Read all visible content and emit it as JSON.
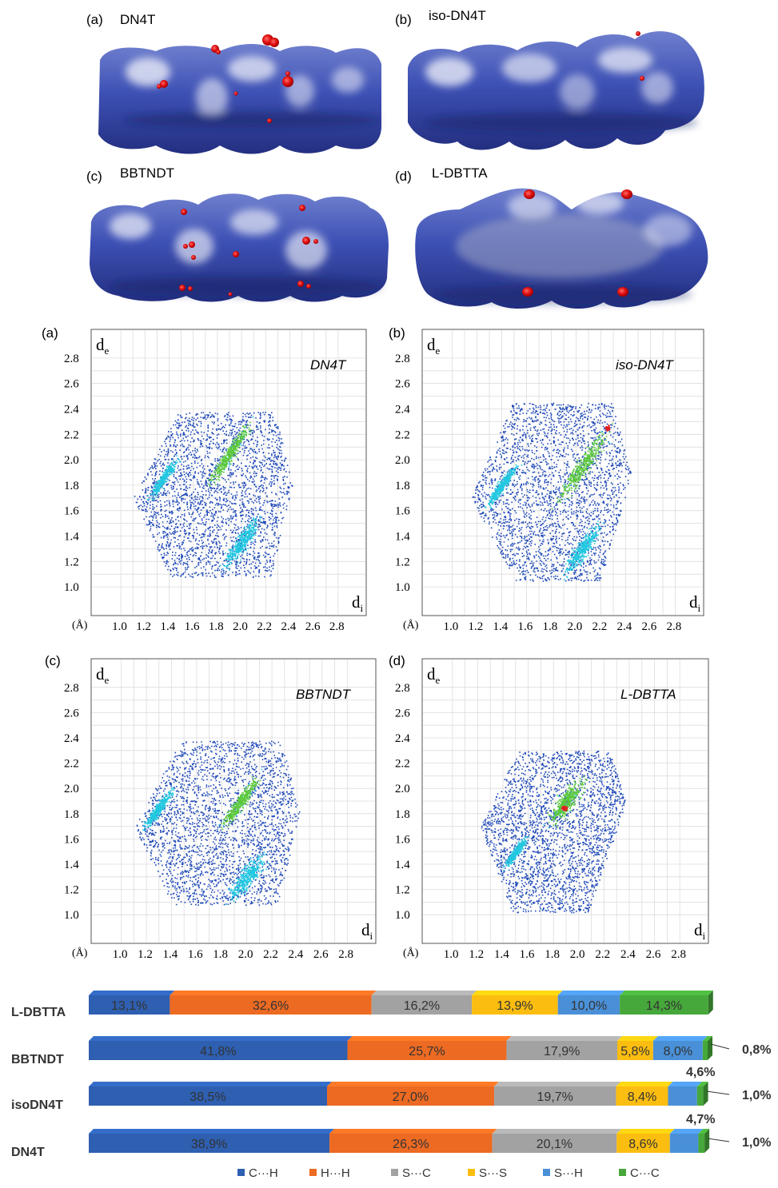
{
  "surfaces": [
    {
      "letter": "(a)",
      "name": "DN4T"
    },
    {
      "letter": "(b)",
      "name": "iso-DN4T"
    },
    {
      "letter": "(c)",
      "name": "BBTNDT"
    },
    {
      "letter": "(d)",
      "name": "L-DBTTA"
    }
  ],
  "fingerprint_labels": {
    "de_main": "d",
    "de_sub": "e",
    "di_main": "d",
    "di_sub": "i",
    "unit": "(Å)",
    "y_ticks": [
      "1.0",
      "1.2",
      "1.4",
      "1.6",
      "1.8",
      "2.0",
      "2.2",
      "2.4",
      "2.6",
      "2.8"
    ],
    "x_ticks": [
      "1.0",
      "1.2",
      "1.4",
      "1.6",
      "1.8",
      "2.0",
      "2.2",
      "2.4",
      "2.6",
      "2.8"
    ]
  },
  "colors": {
    "surface_blue": "#3b4eb0",
    "contact_red": "#e01010",
    "fp_blue": "#1e48b8",
    "fp_cyan": "#22c8e0",
    "fp_green": "#5ac83a",
    "fp_red": "#e02020"
  },
  "chart_data": [
    {
      "type": "scatter",
      "panel": "(a)",
      "title": "DN4T",
      "xlabel": "di",
      "ylabel": "de",
      "xlim": [
        0.9,
        2.9
      ],
      "ylim": [
        0.9,
        2.9
      ],
      "grid": true
    },
    {
      "type": "scatter",
      "panel": "(b)",
      "title": "iso-DN4T",
      "xlabel": "di",
      "ylabel": "de",
      "xlim": [
        0.9,
        2.9
      ],
      "ylim": [
        0.9,
        2.9
      ],
      "grid": true
    },
    {
      "type": "scatter",
      "panel": "(c)",
      "title": "BBTNDT",
      "xlabel": "di",
      "ylabel": "de",
      "xlim": [
        0.9,
        2.9
      ],
      "ylim": [
        0.9,
        2.9
      ],
      "grid": true
    },
    {
      "type": "scatter",
      "panel": "(d)",
      "title": "L-DBTTA",
      "xlabel": "di",
      "ylabel": "de",
      "xlim": [
        0.9,
        2.9
      ],
      "ylim": [
        0.9,
        2.9
      ],
      "grid": true
    },
    {
      "type": "bar",
      "stacked": true,
      "orientation": "horizontal",
      "categories": [
        "L-DBTTA",
        "BBTNDT",
        "isoDN4T",
        "DN4T"
      ],
      "series": [
        {
          "name": "C···H",
          "color": "#2e5fb0",
          "values": [
            13.1,
            41.8,
            38.5,
            38.9
          ],
          "labels": [
            "13,1%",
            "41,8%",
            "38,5%",
            "38,9%"
          ]
        },
        {
          "name": "H···H",
          "color": "#ec6a22",
          "values": [
            32.6,
            25.7,
            27.0,
            26.3
          ],
          "labels": [
            "32,6%",
            "25,7%",
            "27,0%",
            "26,3%"
          ]
        },
        {
          "name": "S···C",
          "color": "#a2a2a2",
          "values": [
            16.2,
            17.9,
            19.7,
            20.1
          ],
          "labels": [
            "16,2%",
            "17,9%",
            "19,7%",
            "20,1%"
          ]
        },
        {
          "name": "S···S",
          "color": "#fbbd10",
          "values": [
            13.9,
            5.8,
            8.4,
            8.6
          ],
          "labels": [
            "13,9%",
            "5,8%",
            "8,4%",
            "8,6%"
          ]
        },
        {
          "name": "S···H",
          "color": "#4a90d8",
          "values": [
            10.0,
            8.0,
            4.7,
            4.6
          ],
          "labels": [
            "10,0%",
            "8,0%",
            "4,7%",
            "4,6%"
          ]
        },
        {
          "name": "C···C",
          "color": "#46a83a",
          "values": [
            14.3,
            0.8,
            1.0,
            1.0
          ],
          "labels": [
            "14,3%",
            "0,8%",
            "1,0%",
            "1,0%"
          ]
        }
      ]
    }
  ]
}
